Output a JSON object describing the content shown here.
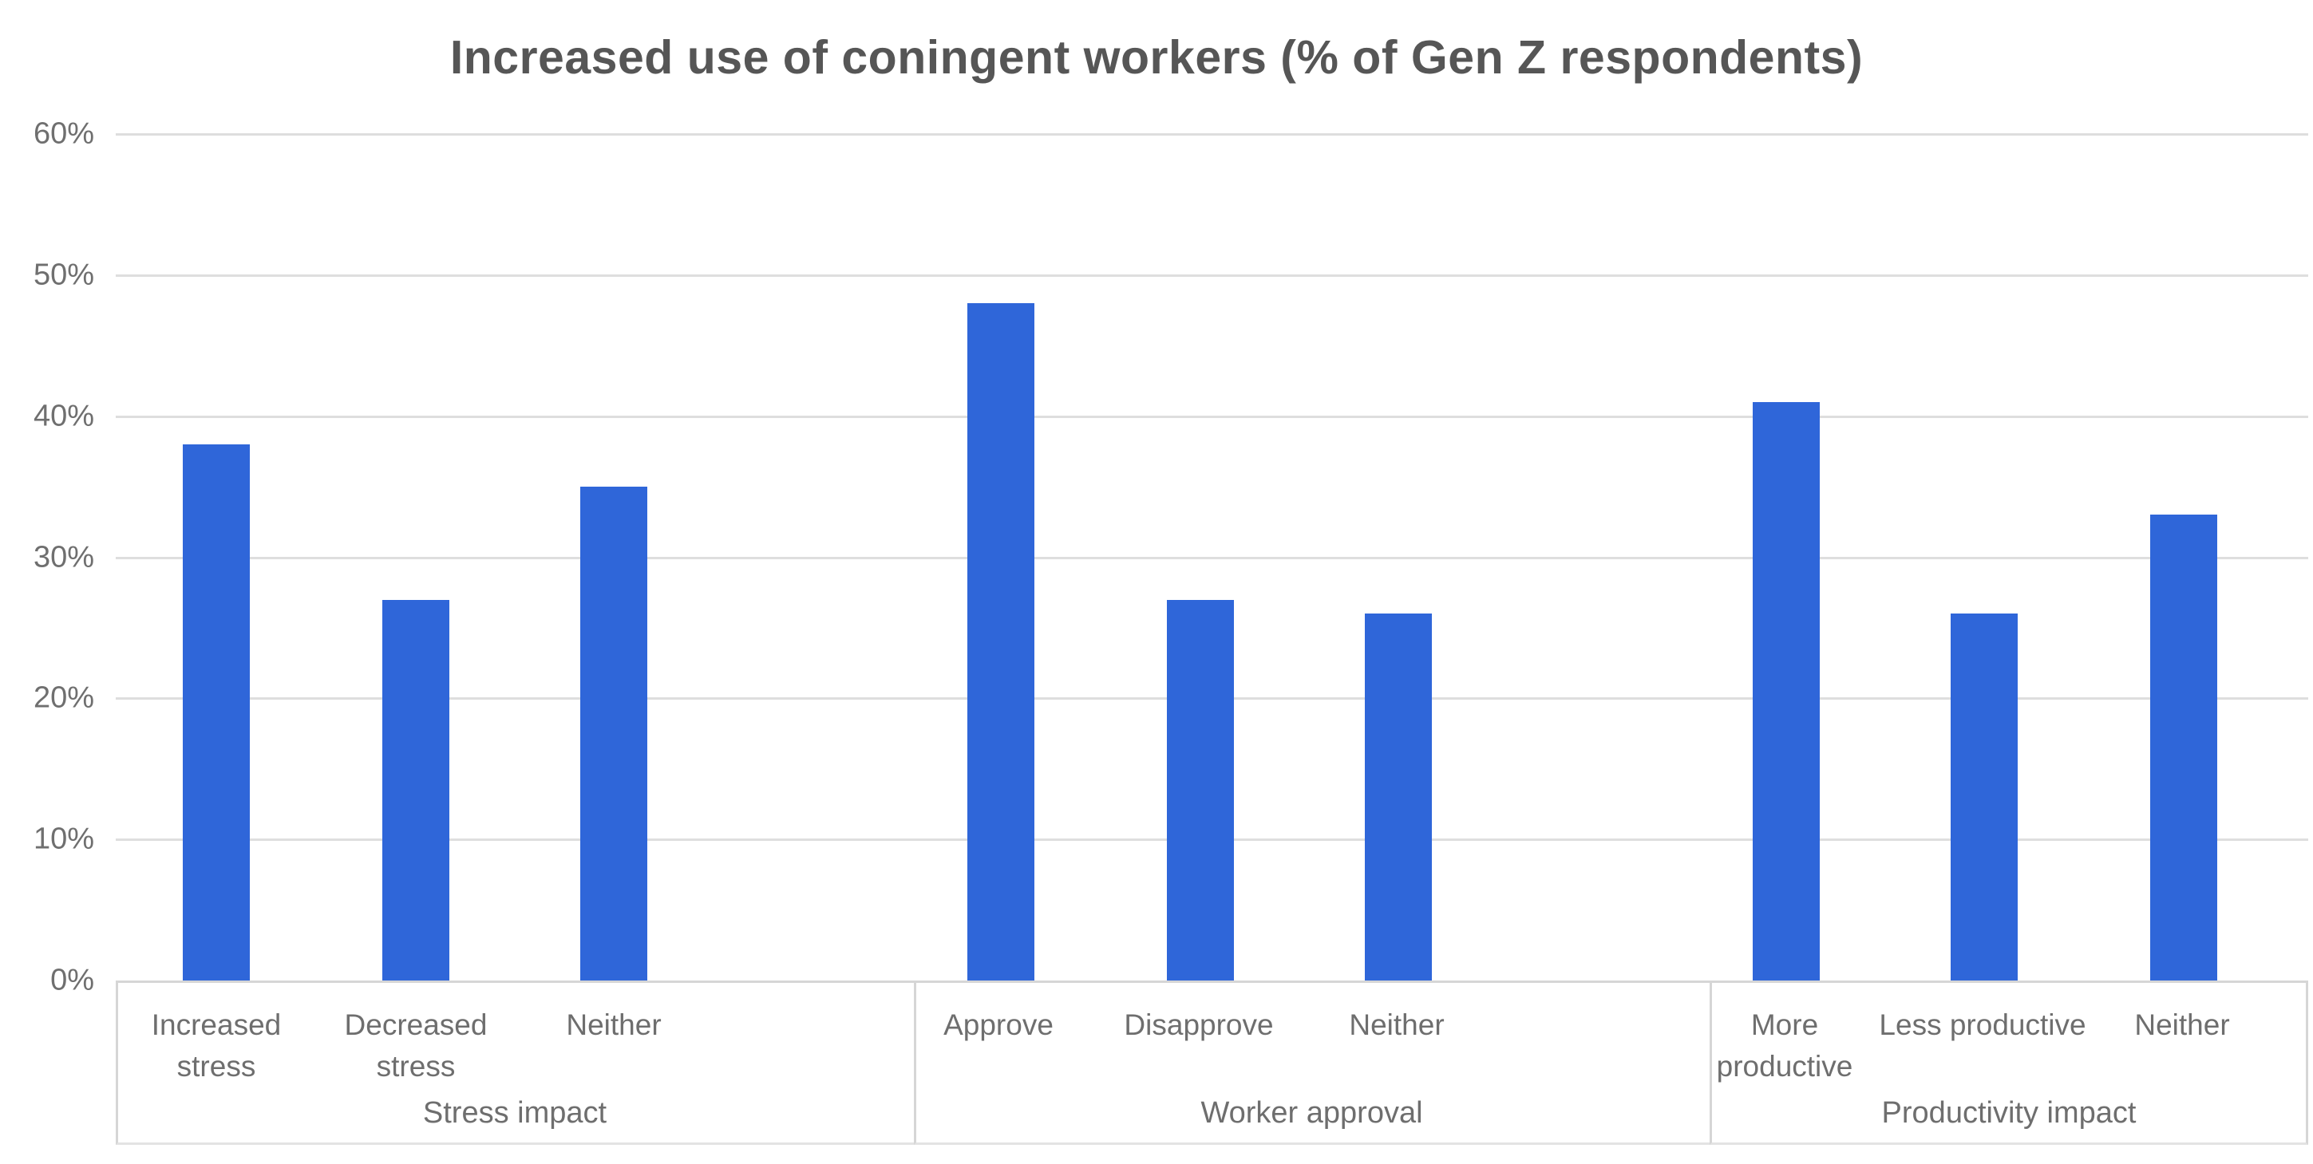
{
  "title": "Increased use of coningent workers (% of Gen Z respondents)",
  "chart_data": {
    "type": "bar",
    "title": "Increased use of coningent workers (% of Gen Z respondents)",
    "xlabel": "",
    "ylabel": "",
    "ylim": [
      0,
      60
    ],
    "grid": true,
    "legend": "none",
    "bar_color": "#2F66D9",
    "gridline_color": "#dedede",
    "text_color": "#6e6e6e",
    "title_color": "#565656",
    "y_ticks": [
      "60%",
      "50%",
      "40%",
      "30%",
      "20%",
      "10%",
      "0%"
    ],
    "groups": [
      {
        "label": "Stress impact",
        "categories": [
          "Increased stress",
          "Decreased stress",
          "Neither"
        ],
        "values": [
          38,
          27,
          35
        ]
      },
      {
        "label": "Worker approval",
        "categories": [
          "Approve",
          "Disapprove",
          "Neither"
        ],
        "values": [
          48,
          27,
          26
        ]
      },
      {
        "label": "Productivity impact",
        "categories": [
          "More productive",
          "Less productive",
          "Neither"
        ],
        "values": [
          41,
          26,
          33
        ]
      }
    ]
  }
}
